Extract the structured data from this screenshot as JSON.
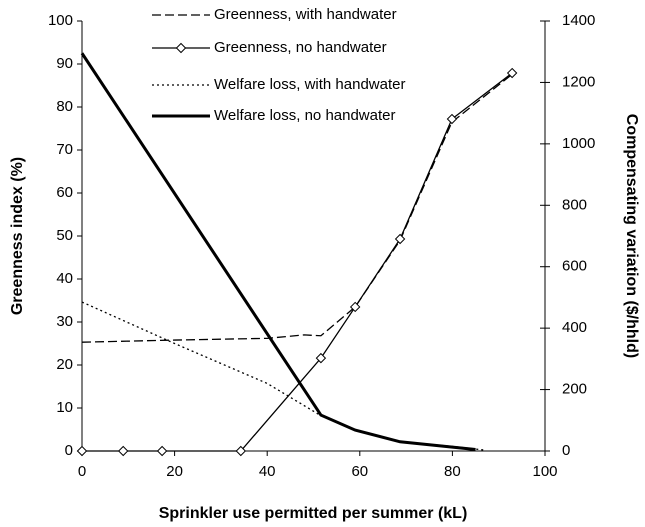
{
  "chart_data": {
    "type": "line",
    "xlabel": "Sprinkler use permitted per summer (kL)",
    "ylabel": "Greenness index (%)",
    "y2label": "Compensating variation ($/hhld)",
    "xlim": [
      0,
      100
    ],
    "xticks": [
      0,
      20,
      40,
      60,
      80,
      100
    ],
    "ylim": [
      0,
      100
    ],
    "yticks": [
      0,
      10,
      20,
      30,
      40,
      50,
      60,
      70,
      80,
      90,
      100
    ],
    "y2lim": [
      0,
      1400
    ],
    "y2ticks": [
      0,
      200,
      400,
      600,
      800,
      1000,
      1200,
      1400
    ],
    "series": [
      {
        "name": "Greenness, with handwater",
        "color": "#000000",
        "dash": "dashed",
        "marker": "none",
        "width": 1.3,
        "x": [
          0,
          20,
          40,
          48,
          51.6,
          59,
          68.7,
          79.9,
          92.9
        ],
        "values": [
          25.3,
          25.8,
          26.2,
          27,
          26.8,
          33.5,
          49,
          76.5,
          87.6
        ]
      },
      {
        "name": "Greenness, no handwater",
        "color": "#000000",
        "dash": "solid",
        "marker": "diamond",
        "width": 1.3,
        "x": [
          0,
          8.9,
          17.3,
          34.3,
          51.6,
          59,
          68.7,
          79.9,
          92.9
        ],
        "values": [
          0,
          0,
          0,
          0,
          21.6,
          33.5,
          49.3,
          77.2,
          87.9
        ]
      },
      {
        "name": "Welfare loss, with handwater",
        "color": "#000000",
        "dash": "dotted",
        "marker": "none",
        "width": 1.3,
        "axis": "y2",
        "x": [
          0,
          20,
          40,
          51.6,
          59,
          68.7,
          80,
          87
        ],
        "values": [
          485,
          350,
          220,
          115,
          70,
          30,
          15,
          3
        ]
      },
      {
        "name": "Welfare loss, no handwater",
        "color": "#000000",
        "dash": "solid",
        "marker": "none",
        "width": 3,
        "axis": "y2",
        "x": [
          0,
          51.6,
          59,
          68.7,
          85
        ],
        "values": [
          1295,
          117,
          68,
          30,
          5
        ]
      }
    ]
  }
}
